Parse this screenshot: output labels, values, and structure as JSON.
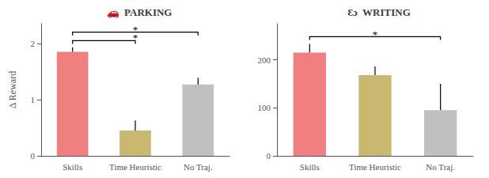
{
  "chart_data": [
    {
      "type": "bar",
      "title": "🚗  PARKING",
      "categories": [
        "Skills",
        "Time Heuristic",
        "No Traj."
      ],
      "values": [
        1.85,
        0.45,
        1.27
      ],
      "errors": [
        0.08,
        0.18,
        0.12
      ],
      "colors": [
        "#f08080",
        "#c8b870",
        "#c0c0c0"
      ],
      "ylabel": "Δ Reward",
      "ylim": [
        0,
        2.35
      ],
      "yticks": [
        0,
        1,
        2
      ],
      "grid": false,
      "annotations": [
        {
          "text": "*",
          "from": "Skills",
          "to": "Time Heuristic",
          "y": 2.05
        },
        {
          "text": "*",
          "from": "Skills",
          "to": "No Traj.",
          "y": 2.2
        }
      ]
    },
    {
      "type": "bar",
      "title": "Ɛɔ  WRITING",
      "categories": [
        "Skills",
        "Time Heuristic",
        "No Traj."
      ],
      "values": [
        215,
        168,
        95
      ],
      "errors": [
        18,
        18,
        55
      ],
      "colors": [
        "#f08080",
        "#c8b870",
        "#c0c0c0"
      ],
      "ylim": [
        0,
        275
      ],
      "yticks": [
        0,
        100,
        200
      ],
      "grid": false,
      "annotations": [
        {
          "text": "*",
          "from": "Skills",
          "to": "No Traj.",
          "y": 248
        }
      ]
    }
  ]
}
